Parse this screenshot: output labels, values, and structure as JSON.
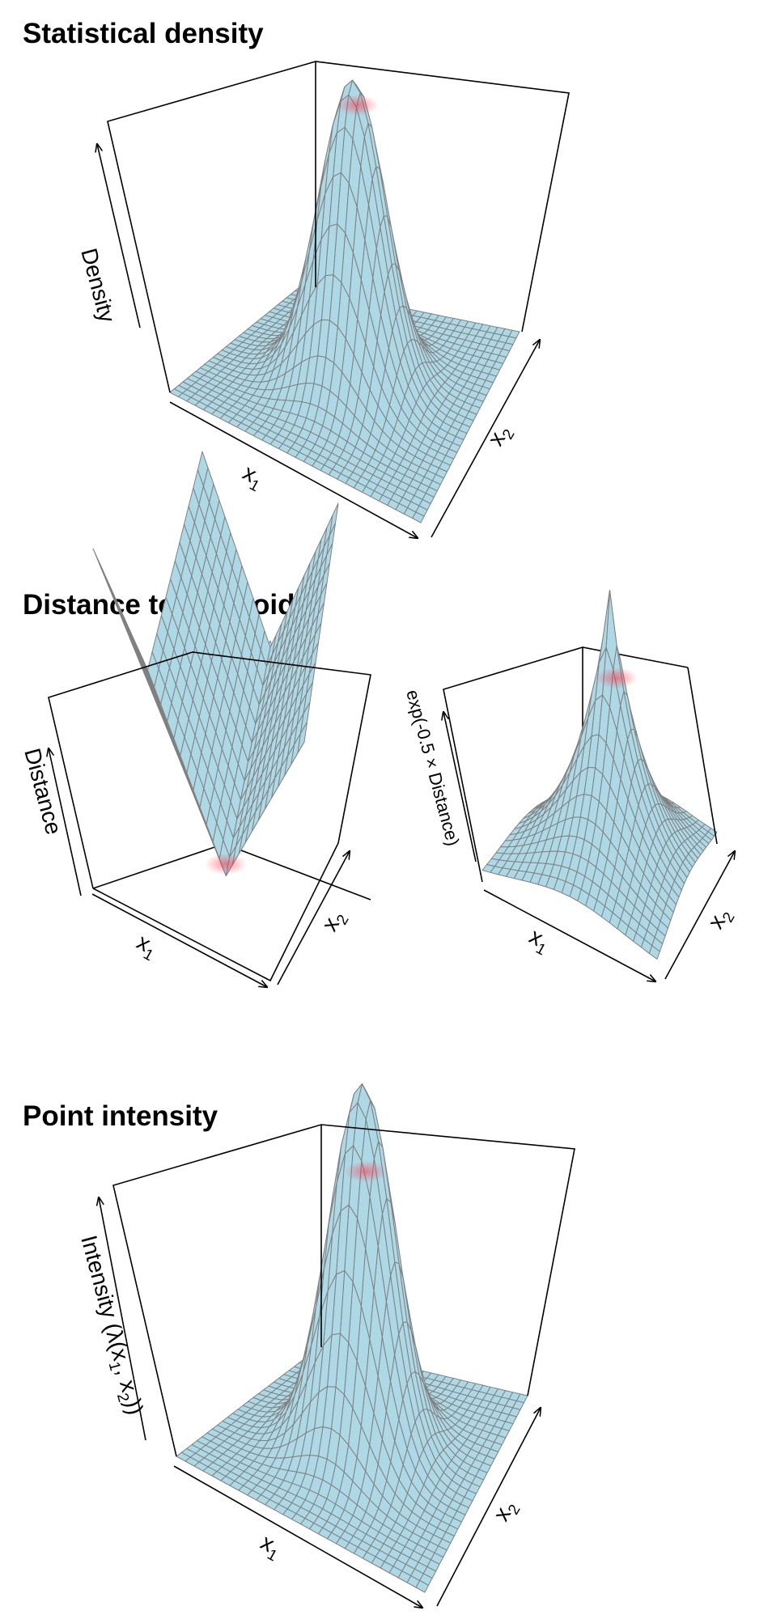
{
  "colors": {
    "surface": "#add8e6",
    "mesh": "#808080",
    "box": "#000000",
    "peak_glow": "#ff4d5a"
  },
  "sections": {
    "density": {
      "title": "Statistical density"
    },
    "distance": {
      "title": "Distance to centroid"
    },
    "intensity": {
      "title": "Point intensity"
    }
  },
  "chart_data": [
    {
      "type": "surface",
      "surface_function": "bivariate gaussian density",
      "title": "Statistical density",
      "xlabel": "x",
      "xlabel_sub": "1",
      "ylabel": "x",
      "ylabel_sub": "2",
      "zlabel": "Density",
      "highlight": "peak"
    },
    {
      "type": "surface",
      "surface_function": "distance to centroid",
      "title": "Distance to centroid",
      "xlabel": "x",
      "xlabel_sub": "1",
      "ylabel": "x",
      "ylabel_sub": "2",
      "zlabel": "Distance",
      "highlight": "minimum"
    },
    {
      "type": "surface",
      "surface_function": "exp(-0.5 * distance)",
      "xlabel": "x",
      "xlabel_sub": "1",
      "ylabel": "x",
      "ylabel_sub": "2",
      "zlabel": "exp(-0.5 × Distance)",
      "highlight": "peak"
    },
    {
      "type": "surface",
      "surface_function": "bivariate gaussian intensity",
      "title": "Point intensity",
      "xlabel": "x",
      "xlabel_sub": "1",
      "ylabel": "x",
      "ylabel_sub": "2",
      "zlabel_parts": [
        "Intensity (λ(x",
        "1",
        ", x",
        "2",
        "))"
      ],
      "highlight": "peak"
    }
  ]
}
